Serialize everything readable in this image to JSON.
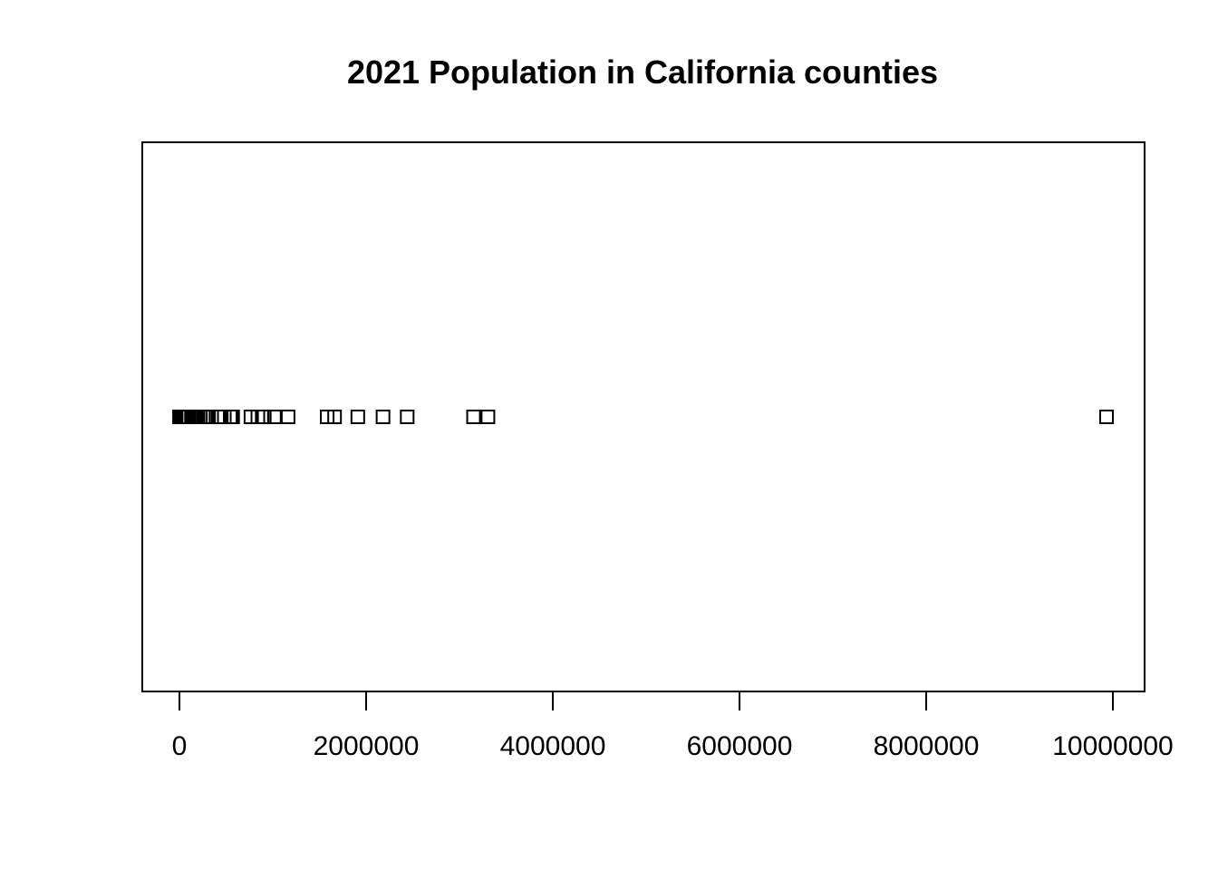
{
  "chart_data": {
    "type": "scatter",
    "title": "2021 Population in California counties",
    "xlabel": "",
    "ylabel": "",
    "xlim": [
      -200000,
      10200000
    ],
    "xticks": [
      0,
      2000000,
      4000000,
      6000000,
      8000000,
      10000000
    ],
    "xtick_labels": [
      "0",
      "2000000",
      "4000000",
      "6000000",
      "8000000",
      "10000000"
    ],
    "grid": false,
    "marker": "open-square",
    "marker_color": "#000000",
    "values": [
      1100,
      3000,
      8000,
      10000,
      18000,
      22000,
      22000,
      28000,
      29000,
      30000,
      45000,
      55000,
      58000,
      63000,
      64000,
      70000,
      87000,
      90000,
      101000,
      129000,
      135000,
      138000,
      150000,
      154000,
      170000,
      180000,
      183000,
      200000,
      225000,
      256000,
      278000,
      283000,
      302000,
      417000,
      430000,
      438000,
      448000,
      481000,
      544000,
      553000,
      570000,
      766000,
      840000,
      887000,
      909000,
      1017000,
      1164000,
      1583000,
      1662000,
      1911000,
      2181000,
      2440000,
      3151000,
      3305000,
      9932000
    ]
  }
}
